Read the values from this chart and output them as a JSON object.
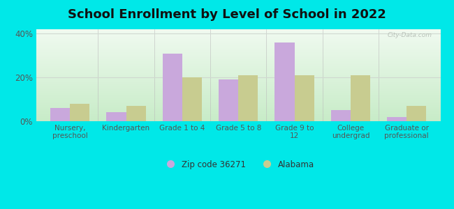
{
  "title": "School Enrollment by Level of School in 2022",
  "categories": [
    "Nursery,\npreschool",
    "Kindergarten",
    "Grade 1 to 4",
    "Grade 5 to 8",
    "Grade 9 to\n12",
    "College\nundergrad",
    "Graduate or\nprofessional"
  ],
  "zip_values": [
    6,
    4,
    31,
    19,
    36,
    5,
    2
  ],
  "alabama_values": [
    8,
    7,
    20,
    21,
    21,
    21,
    7
  ],
  "zip_color": "#c9a8dc",
  "alabama_color": "#c8cc90",
  "background_color": "#00e8e8",
  "plot_bg_top": "#f0faf0",
  "plot_bg_bottom": "#c8ecc8",
  "ylabel": "",
  "ylim": [
    0,
    42
  ],
  "yticks": [
    0,
    20,
    40
  ],
  "ytick_labels": [
    "0%",
    "20%",
    "40%"
  ],
  "bar_width": 0.35,
  "title_fontsize": 13,
  "legend_label_zip": "Zip code 36271",
  "legend_label_alabama": "Alabama",
  "watermark": "City-Data.com",
  "grid_color": "#d0d8d0",
  "tick_color": "#555555",
  "xtick_fontsize": 7.5,
  "ytick_fontsize": 8.5
}
